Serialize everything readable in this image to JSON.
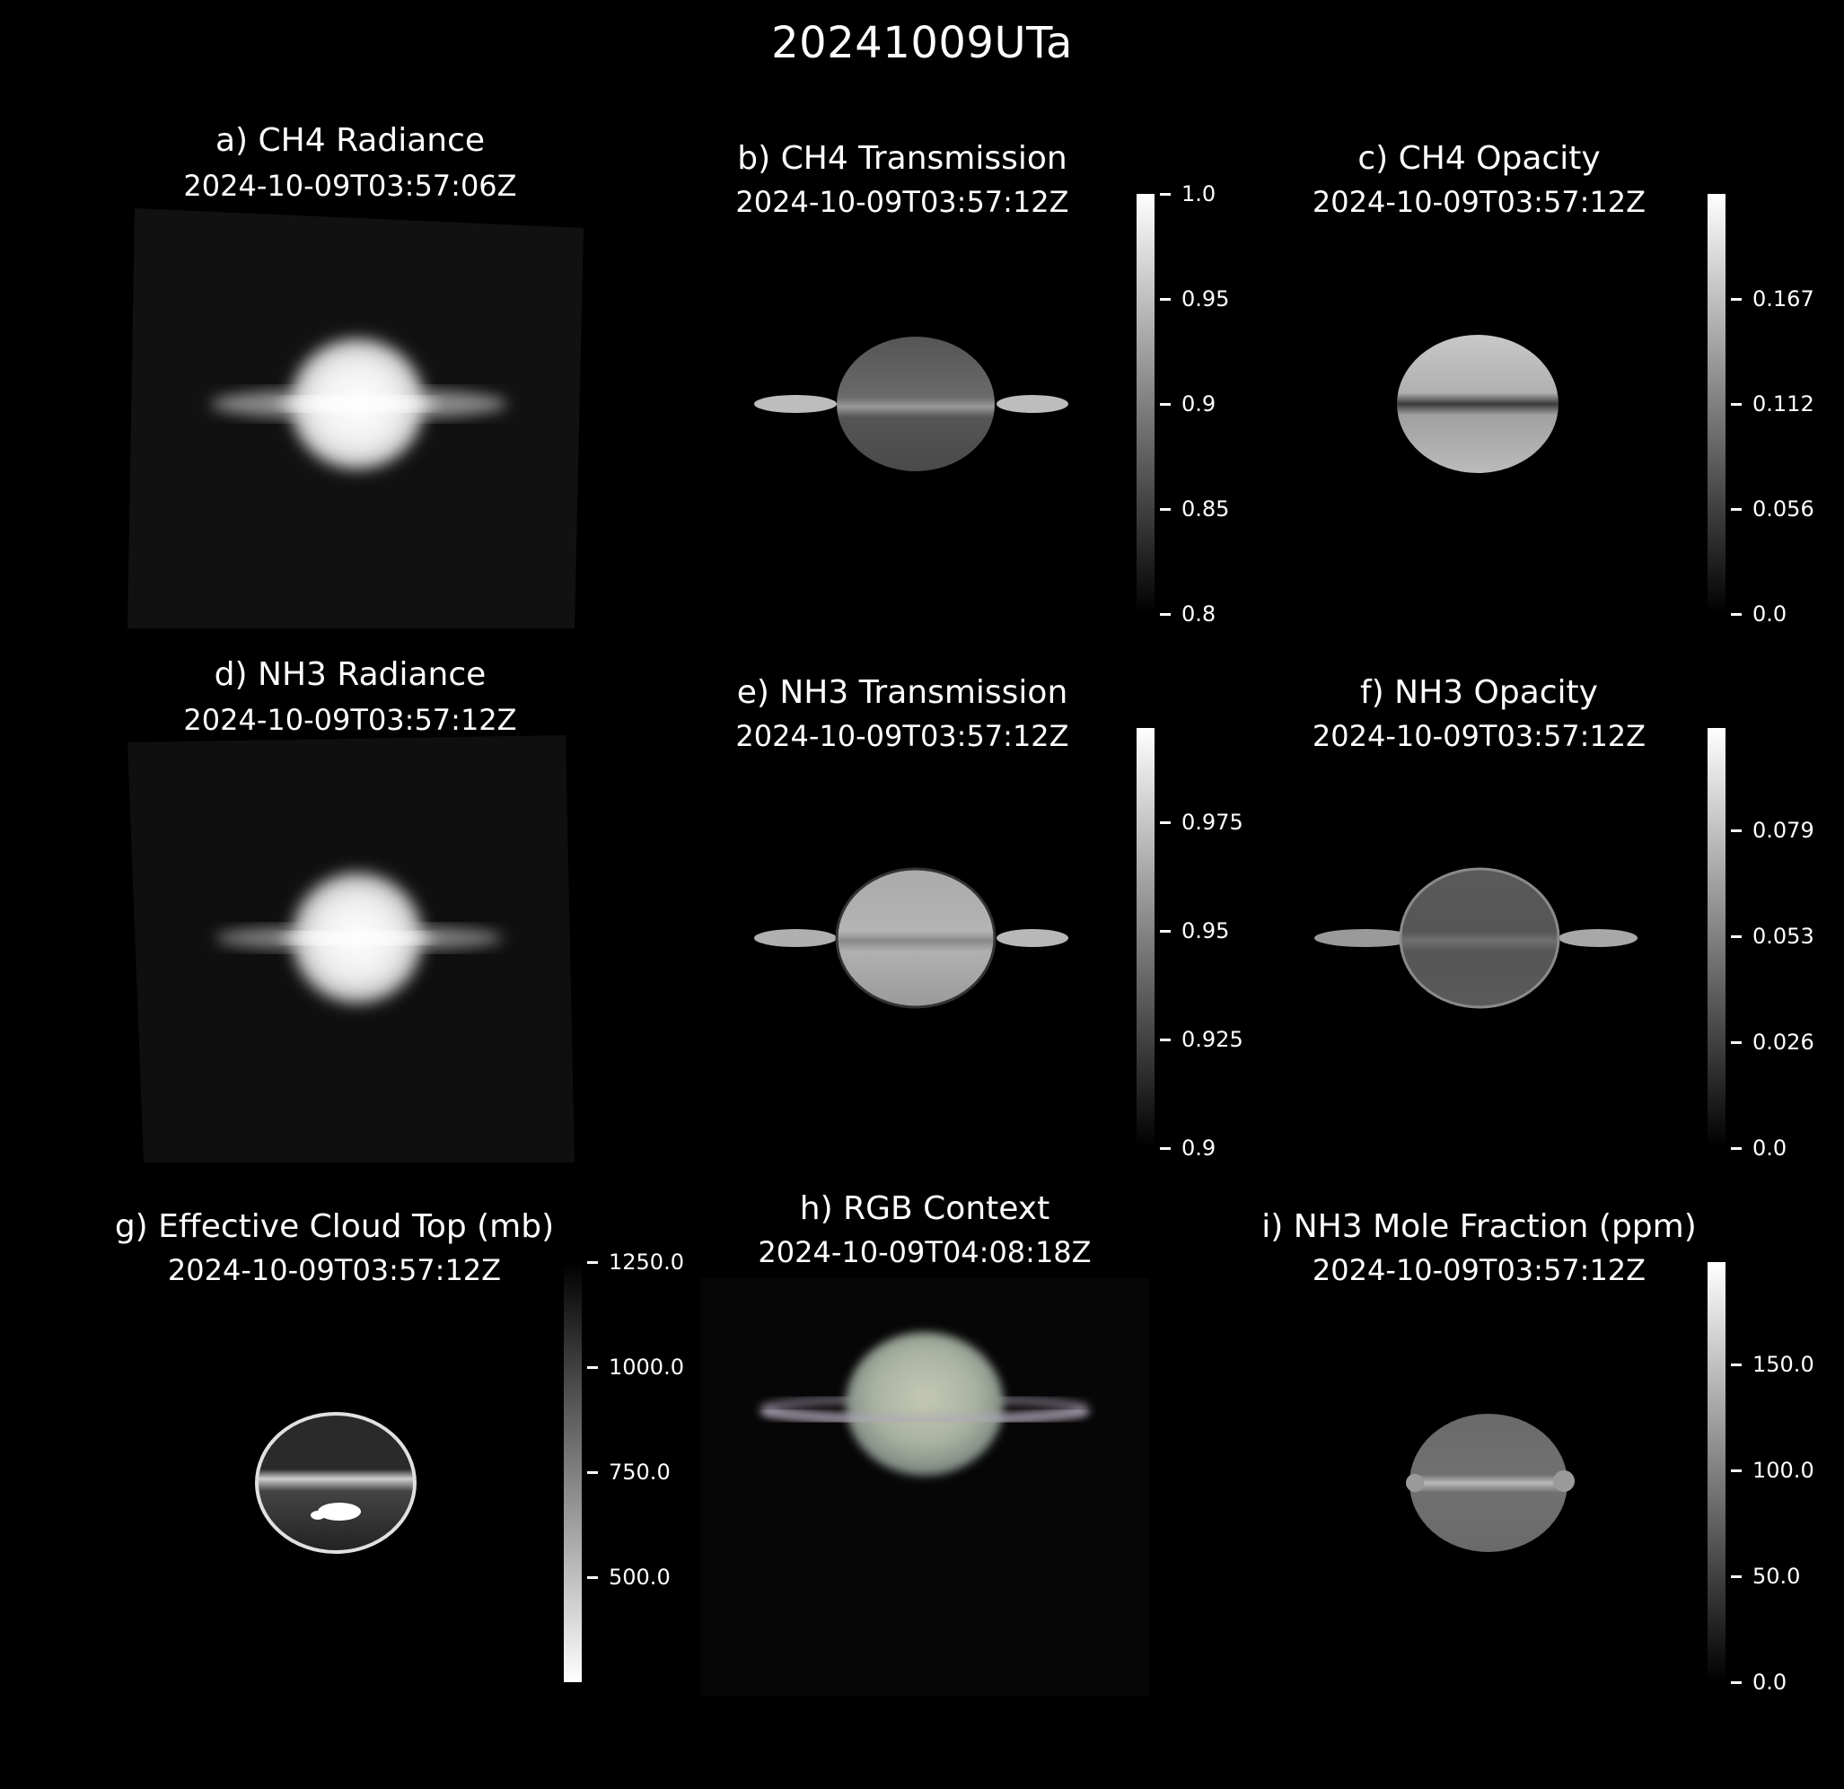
{
  "figure": {
    "title": "20241009UTa"
  },
  "panels": {
    "a": {
      "title": "a) CH4 Radiance",
      "time": "2024-10-09T03:57:06Z"
    },
    "b": {
      "title": "b) CH4 Transmission",
      "time": "2024-10-09T03:57:12Z",
      "colorbar": {
        "ticks": [
          "1.0",
          "0.95",
          "0.9",
          "0.85",
          "0.8"
        ],
        "range": [
          0.8,
          1.0
        ]
      }
    },
    "c": {
      "title": "c) CH4 Opacity",
      "time": "2024-10-09T03:57:12Z",
      "colorbar": {
        "ticks": [
          "0.167",
          "0.112",
          "0.056",
          "0.0"
        ],
        "range": [
          0.0,
          0.223
        ]
      }
    },
    "d": {
      "title": "d) NH3 Radiance",
      "time": "2024-10-09T03:57:12Z"
    },
    "e": {
      "title": "e) NH3 Transmission",
      "time": "2024-10-09T03:57:12Z",
      "colorbar": {
        "ticks": [
          "0.975",
          "0.95",
          "0.925",
          "0.9"
        ],
        "range": [
          0.9,
          0.997
        ]
      }
    },
    "f": {
      "title": "f) NH3 Opacity",
      "time": "2024-10-09T03:57:12Z",
      "colorbar": {
        "ticks": [
          "0.079",
          "0.053",
          "0.026",
          "0.0"
        ],
        "range": [
          0.0,
          0.105
        ]
      }
    },
    "g": {
      "title": "g) Effective Cloud Top (mb)",
      "time": "2024-10-09T03:57:12Z",
      "colorbar": {
        "ticks": [
          "1250.0",
          "1000.0",
          "750.0",
          "500.0"
        ],
        "range": [
          1250,
          250
        ],
        "reversed": true
      }
    },
    "h": {
      "title": "h) RGB Context",
      "time": "2024-10-09T04:08:18Z"
    },
    "i": {
      "title": "i) NH3 Mole Fraction (ppm)",
      "time": "2024-10-09T03:57:12Z",
      "colorbar": {
        "ticks": [
          "150.0",
          "100.0",
          "50.0",
          "0.0"
        ],
        "range": [
          0,
          195
        ]
      }
    }
  },
  "colors": {
    "background": "#000000",
    "text": "#ffffff"
  }
}
